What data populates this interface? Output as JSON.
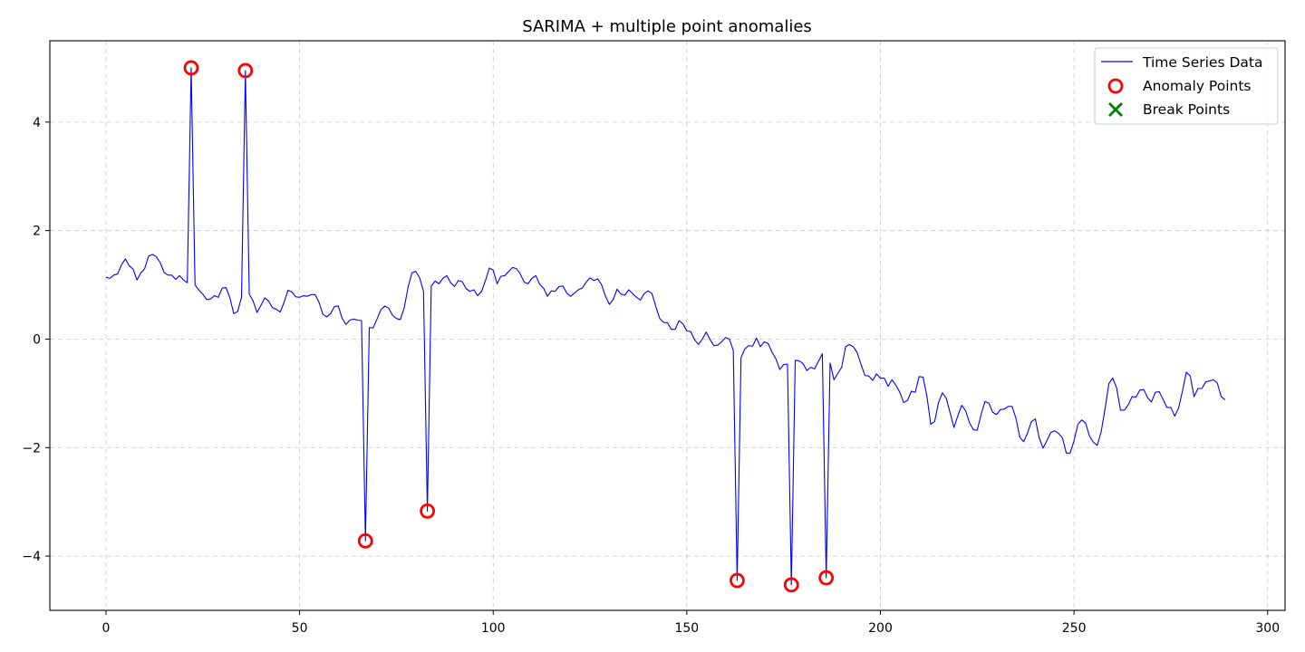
{
  "chart_data": {
    "type": "line",
    "title": "SARIMA + multiple point anomalies",
    "xlabel": "",
    "ylabel": "",
    "xlim": [
      -14.5,
      304.5
    ],
    "ylim": [
      -5.0,
      5.5
    ],
    "xticks": [
      0,
      50,
      100,
      150,
      200,
      250,
      300
    ],
    "yticks": [
      -4,
      -2,
      0,
      2,
      4
    ],
    "grid": true,
    "legend_position": "top-right",
    "series": [
      {
        "name": "Time Series Data",
        "color": "#0000ff",
        "mark": "line",
        "values": [
          1.14,
          1.12,
          1.18,
          1.2,
          1.37,
          1.48,
          1.35,
          1.29,
          1.09,
          1.22,
          1.3,
          1.53,
          1.56,
          1.52,
          1.41,
          1.23,
          1.18,
          1.18,
          1.1,
          1.17,
          1.09,
          1.04,
          5.0,
          1.0,
          0.9,
          0.83,
          0.73,
          0.74,
          0.8,
          0.77,
          0.94,
          0.95,
          0.76,
          0.47,
          0.51,
          0.77,
          4.95,
          0.83,
          0.7,
          0.49,
          0.62,
          0.76,
          0.7,
          0.58,
          0.55,
          0.5,
          0.68,
          0.9,
          0.87,
          0.78,
          0.77,
          0.8,
          0.79,
          0.82,
          0.82,
          0.68,
          0.46,
          0.41,
          0.47,
          0.6,
          0.61,
          0.38,
          0.27,
          0.35,
          0.37,
          0.35,
          0.34,
          -3.72,
          0.21,
          0.21,
          0.37,
          0.54,
          0.61,
          0.57,
          0.44,
          0.38,
          0.36,
          0.57,
          0.95,
          1.22,
          1.25,
          1.13,
          0.88,
          -3.17,
          0.98,
          1.07,
          1.02,
          1.12,
          1.17,
          1.04,
          0.97,
          1.08,
          1.06,
          0.93,
          0.88,
          0.91,
          0.8,
          0.88,
          1.08,
          1.31,
          1.27,
          1.02,
          1.16,
          1.17,
          1.25,
          1.32,
          1.3,
          1.2,
          1.05,
          1.02,
          1.12,
          1.17,
          1.01,
          0.94,
          0.79,
          0.89,
          0.88,
          0.97,
          0.98,
          0.85,
          0.79,
          0.85,
          0.91,
          0.94,
          1.05,
          1.13,
          1.08,
          1.11,
          1.0,
          0.79,
          0.64,
          0.73,
          0.92,
          0.83,
          0.81,
          0.91,
          0.84,
          0.77,
          0.72,
          0.84,
          0.89,
          0.84,
          0.6,
          0.38,
          0.31,
          0.3,
          0.18,
          0.18,
          0.34,
          0.28,
          0.15,
          0.14,
          -0.01,
          -0.1,
          0.0,
          0.13,
          -0.01,
          -0.12,
          -0.11,
          -0.05,
          0.03,
          0.0,
          -0.21,
          -4.45,
          -0.34,
          -0.18,
          -0.12,
          -0.13,
          0.02,
          -0.14,
          -0.05,
          -0.08,
          -0.24,
          -0.36,
          -0.56,
          -0.47,
          -0.46,
          -4.53,
          -0.39,
          -0.4,
          -0.45,
          -0.58,
          -0.52,
          -0.55,
          -0.41,
          -0.27,
          -4.4,
          -0.44,
          -0.75,
          -0.63,
          -0.52,
          -0.14,
          -0.1,
          -0.14,
          -0.25,
          -0.47,
          -0.67,
          -0.68,
          -0.76,
          -0.64,
          -0.72,
          -0.72,
          -0.87,
          -0.75,
          -0.85,
          -0.98,
          -1.17,
          -1.13,
          -0.96,
          -0.98,
          -0.69,
          -0.7,
          -1.05,
          -1.57,
          -1.52,
          -1.17,
          -0.99,
          -1.09,
          -1.36,
          -1.63,
          -1.41,
          -1.22,
          -1.32,
          -1.54,
          -1.67,
          -1.68,
          -1.39,
          -1.15,
          -1.18,
          -1.35,
          -1.39,
          -1.3,
          -1.29,
          -1.24,
          -1.24,
          -1.46,
          -1.81,
          -1.89,
          -1.73,
          -1.52,
          -1.47,
          -1.82,
          -2.01,
          -1.87,
          -1.72,
          -1.69,
          -1.74,
          -1.82,
          -2.1,
          -2.1,
          -1.87,
          -1.57,
          -1.49,
          -1.55,
          -1.79,
          -1.9,
          -1.96,
          -1.71,
          -1.29,
          -0.82,
          -0.72,
          -0.9,
          -1.31,
          -1.31,
          -1.21,
          -1.06,
          -1.07,
          -0.94,
          -0.93,
          -1.08,
          -1.16,
          -0.98,
          -0.97,
          -1.11,
          -1.26,
          -1.26,
          -1.42,
          -1.27,
          -0.96,
          -0.61,
          -0.68,
          -1.06,
          -0.91,
          -0.91,
          -0.79,
          -0.77,
          -0.75,
          -0.81,
          -1.06,
          -1.12
        ]
      },
      {
        "name": "Anomaly Points",
        "color": "#ff0000",
        "mark": "hollow-circle",
        "points": [
          {
            "x": 22,
            "y": 5.0
          },
          {
            "x": 36,
            "y": 4.95
          },
          {
            "x": 67,
            "y": -3.72
          },
          {
            "x": 83,
            "y": -3.17
          },
          {
            "x": 163,
            "y": -4.45
          },
          {
            "x": 177,
            "y": -4.53
          },
          {
            "x": 186,
            "y": -4.4
          }
        ]
      },
      {
        "name": "Break Points",
        "color": "#008000",
        "mark": "x",
        "points": []
      }
    ]
  }
}
